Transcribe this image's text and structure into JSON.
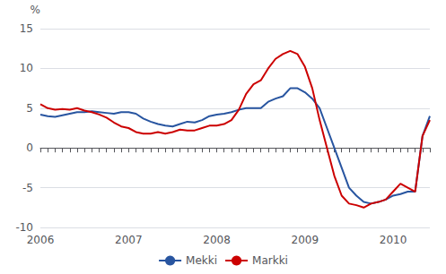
{
  "chart_data": {
    "type": "line",
    "ylabel": "%",
    "categories": [
      "2006",
      null,
      null,
      null,
      null,
      null,
      null,
      null,
      null,
      null,
      null,
      null,
      "2007",
      null,
      null,
      null,
      null,
      null,
      null,
      null,
      null,
      null,
      null,
      null,
      "2008",
      null,
      null,
      null,
      null,
      null,
      null,
      null,
      null,
      null,
      null,
      null,
      "2009",
      null,
      null,
      null,
      null,
      null,
      null,
      null,
      null,
      null,
      null,
      null,
      "2010",
      null,
      null,
      null,
      null,
      null
    ],
    "series": [
      {
        "name": "Mekki",
        "color": "#2855a0",
        "values": [
          4.2,
          4.0,
          3.9,
          4.1,
          4.3,
          4.5,
          4.5,
          4.6,
          4.5,
          4.4,
          4.3,
          4.5,
          4.5,
          4.3,
          3.7,
          3.3,
          3.0,
          2.8,
          2.7,
          3.0,
          3.3,
          3.2,
          3.5,
          4.0,
          4.2,
          4.3,
          4.5,
          4.8,
          5.0,
          5.0,
          5.0,
          5.8,
          6.2,
          6.5,
          7.5,
          7.5,
          7.0,
          6.2,
          5.0,
          2.5,
          0.0,
          -2.5,
          -5.0,
          -6.0,
          -6.8,
          -7.0,
          -6.8,
          -6.5,
          -6.0,
          -5.8,
          -5.5,
          -5.5,
          1.5,
          4.0
        ]
      },
      {
        "name": "Markki",
        "color": "#cc0000",
        "values": [
          5.5,
          5.0,
          4.8,
          4.9,
          4.8,
          5.0,
          4.7,
          4.5,
          4.2,
          3.8,
          3.2,
          2.7,
          2.5,
          2.0,
          1.8,
          1.8,
          2.0,
          1.8,
          2.0,
          2.3,
          2.2,
          2.2,
          2.5,
          2.8,
          2.8,
          3.0,
          3.5,
          4.8,
          6.8,
          8.0,
          8.5,
          10.0,
          11.2,
          11.8,
          12.2,
          11.8,
          10.2,
          7.5,
          3.5,
          0.0,
          -3.5,
          -6.0,
          -7.0,
          -7.2,
          -7.5,
          -7.0,
          -6.8,
          -6.5,
          -5.5,
          -4.5,
          -5.0,
          -5.5,
          1.5,
          3.5
        ]
      }
    ],
    "ylim": [
      -10,
      15
    ],
    "yticks": [
      -10,
      -5,
      0,
      5,
      10,
      15
    ],
    "grid": true,
    "legend": "bottom"
  }
}
